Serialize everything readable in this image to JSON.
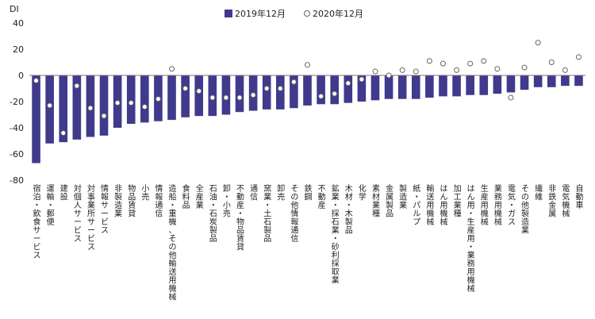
{
  "chart_data": {
    "type": "bar",
    "ylabel": "DI",
    "ylim": [
      -80,
      40
    ],
    "yticks": [
      40,
      20,
      0,
      -20,
      -40,
      -60,
      -80
    ],
    "legend": {
      "placement": "top-center"
    },
    "colors": {
      "bar": "#3f3a8c",
      "marker_edge": "#666666",
      "marker_fill": "#ffffff",
      "zero_line": "#777777"
    },
    "categories": [
      "宿泊・飲食サービス",
      "運輸・郵便",
      "建設",
      "対個人サービス",
      "対事業所サービス",
      "情報サービス",
      "非製造業",
      "物品賃貸",
      "小売",
      "情報通信",
      "造船・重機、その他輸送用機械",
      "食料品",
      "全産業",
      "石油・石炭製品",
      "卸・小売",
      "不動産・物品賃貸",
      "通信",
      "窯業・土石製品",
      "卸売",
      "その他情報通信",
      "鉄鋼",
      "不動産",
      "鉱業・採石業・砂利採取業",
      "木材・木製品",
      "化学",
      "素材業種",
      "金属製品",
      "製造業",
      "紙・パルプ",
      "輸送用機械",
      "はん用機械",
      "加工業種",
      "はん用・生産用・業務用機械",
      "生産用機械",
      "業務用機械",
      "電気・ガス",
      "その他製造業",
      "繊維",
      "非鉄金属",
      "電気機械",
      "自動車"
    ],
    "series": [
      {
        "name": "2019年12月",
        "style": "bar",
        "values": [
          -67,
          -52,
          -51,
          -49,
          -47,
          -46,
          -40,
          -37,
          -36,
          -35,
          -34,
          -32,
          -31,
          -31,
          -30,
          -28,
          -27,
          -26,
          -26,
          -25,
          -23,
          -22,
          -22,
          -21,
          -20,
          -19,
          -18,
          -18,
          -18,
          -17,
          -16,
          -16,
          -15,
          -15,
          -14,
          -13,
          -11,
          -9,
          -9,
          -8,
          -8
        ]
      },
      {
        "name": "2020年12月",
        "style": "marker",
        "values": [
          -4,
          -23,
          -44,
          -8,
          -25,
          -31,
          -21,
          -21,
          -24,
          -18,
          5,
          -10,
          -12,
          -17,
          -17,
          -17,
          -15,
          -10,
          -10,
          -5,
          8,
          -16,
          -14,
          -6,
          -3,
          3,
          0,
          4,
          3,
          11,
          9,
          4,
          9,
          11,
          5,
          -17,
          6,
          25,
          10,
          4,
          14
        ]
      }
    ]
  }
}
